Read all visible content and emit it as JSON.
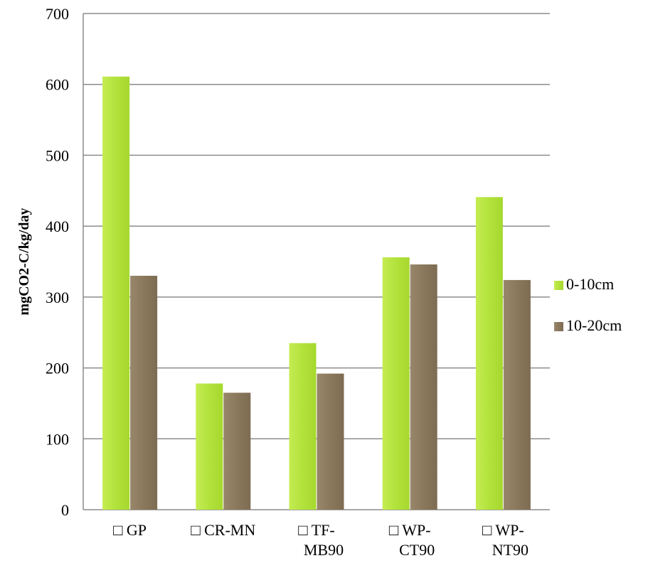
{
  "chart_data": {
    "type": "bar",
    "title": "",
    "xlabel": "",
    "ylabel": "mgCO2-C/kg/day",
    "ylim": [
      0,
      700
    ],
    "yticks": [
      0,
      100,
      200,
      300,
      400,
      500,
      600,
      700
    ],
    "grid": true,
    "legend_position": "right",
    "categories": [
      "□ GP",
      "□  CR-MN",
      "□  TF-\nMB90",
      "□  WP-\nCT90",
      "□  WP-\nNT90"
    ],
    "series": [
      {
        "name": "0-10cm",
        "color": "#b2e23c",
        "values": [
          611,
          178,
          235,
          356,
          441
        ]
      },
      {
        "name": "10-20cm",
        "color": "#8c7a5f",
        "values": [
          330,
          165,
          192,
          346,
          324
        ]
      }
    ]
  }
}
